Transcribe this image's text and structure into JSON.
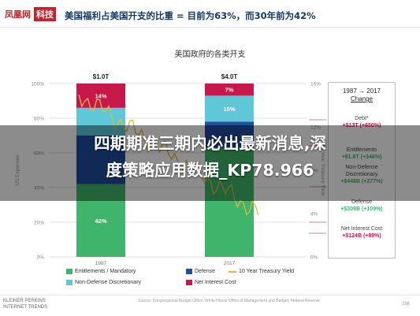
{
  "header": {
    "logo_part1": "凤凰网",
    "logo_part2": "科技",
    "title": "美国福利占美国开支的比重 = 目前为63%，而30年前为42%"
  },
  "chart_data": {
    "type": "bar",
    "title": "美国政府的各类开支",
    "ylabel": "US Expenses",
    "y2label": "10 Year Treasury Yield",
    "ylim": [
      0,
      100
    ],
    "y_ticks": [
      "0%",
      "20%",
      "40%",
      "60%",
      "80%",
      "100%"
    ],
    "y2_ticks": [
      "0%",
      "4%",
      "8%",
      "12%",
      "16%"
    ],
    "categories": [
      "1987",
      "2017"
    ],
    "totals": [
      "$1.0T",
      "$4.0T"
    ],
    "series": [
      {
        "name": "Entitlements / Mandatory",
        "color": "#3fb46b",
        "values": [
          42,
          63
        ],
        "labels": [
          "42%",
          ""
        ]
      },
      {
        "name": "Defense",
        "color": "#1f4e9c",
        "values": [
          28,
          15
        ],
        "labels": [
          "",
          ""
        ]
      },
      {
        "name": "Non-Defense Discretionary",
        "color": "#5ec8d8",
        "values": [
          16,
          15
        ],
        "labels": [
          "",
          "15%"
        ]
      },
      {
        "name": "Net Interest Cost",
        "color": "#c8174a",
        "values": [
          14,
          7
        ],
        "labels": [
          "14%",
          "7%"
        ]
      }
    ],
    "line_series": {
      "name": "10 Year Treasury Yield",
      "color": "#e0b93c"
    },
    "grid": true,
    "legend": "bottom"
  },
  "change_box": {
    "header_line1": "1987 → 2017",
    "header_line2": "Change",
    "items": [
      {
        "name": "Debt*",
        "value": "+$13T (+650%)",
        "color": "#c8174a"
      },
      {
        "name": "Entitlements",
        "value": "+$1.8T (+346%)",
        "color": "#3fb46b"
      },
      {
        "name": "Non-Defense Discretionary",
        "value": "+$448B (+277%)",
        "color": "#3fb46b"
      },
      {
        "name": "Defense",
        "value": "+$308B (+109%)",
        "color": "#3fb46b"
      },
      {
        "name": "Net Interest Cost",
        "value": "+$124B (+89%)",
        "color": "#c8174a"
      }
    ]
  },
  "footer": {
    "brand_line1": "KLEINER PERKINS",
    "brand_line2": "INTERNET TRENDS",
    "source": "Source: Congressional Budget Office, White House Office of Management and Budget, Federal Reserve",
    "page": "298"
  },
  "overlay": {
    "line1": "四期期准三期内必出最新消息,深",
    "line2": "度策略应用数据_KP78.966"
  }
}
